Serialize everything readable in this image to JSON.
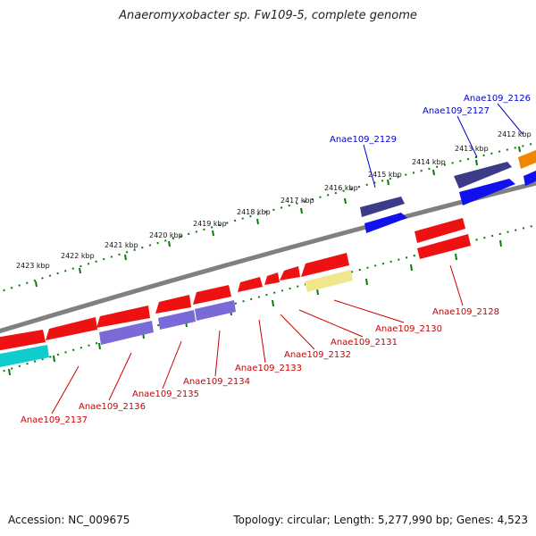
{
  "title": "Anaeromyxobacter sp. Fw109-5, complete genome",
  "footer": {
    "accession": "Accession: NC_009675",
    "summary": "Topology: circular; Length: 5,277,990 bp; Genes: 4,523"
  },
  "tick_labels": [
    "2412 kbp",
    "2413 kbp",
    "2414 kbp",
    "2415 kbp",
    "2416 kbp",
    "2417 kbp",
    "2418 kbp",
    "2419 kbp",
    "2420 kbp",
    "2421 kbp",
    "2422 kbp",
    "2423 kbp"
  ],
  "gene_labels_top": [
    "Anae109_2126",
    "Anae109_2127",
    "Anae109_2129"
  ],
  "gene_labels_bottom": [
    "Anae109_2128",
    "Anae109_2130",
    "Anae109_2131",
    "Anae109_2132",
    "Anae109_2133",
    "Anae109_2134",
    "Anae109_2135",
    "Anae109_2136",
    "Anae109_2137"
  ],
  "colors": {
    "red": "#ee1111",
    "blue": "#1111ee",
    "navy": "#3b3b88",
    "lavender": "#7a6ad8",
    "cyan": "#11cccc",
    "orange": "#ee8800",
    "pale_yellow": "#f0e68c",
    "backbone": "#808080",
    "tick_green": "#0a7a0a",
    "label_blue": "#0000cc",
    "label_red": "#cc0000"
  }
}
